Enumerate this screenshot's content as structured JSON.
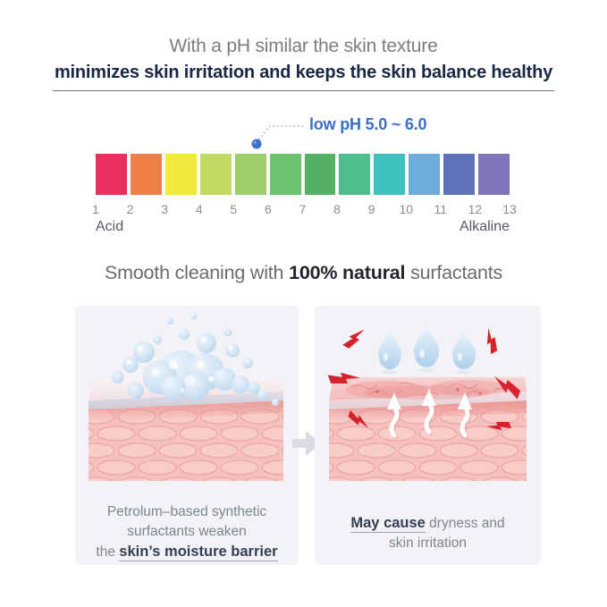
{
  "header": {
    "subtitle": "With a pH similar the skin texture",
    "title": "minimizes skin irritation and keeps the skin balance healthy",
    "title_color": "#1a2845",
    "subtitle_color": "#7c7c7c"
  },
  "ph_scale": {
    "callout": "low pH 5.0 ~ 6.0",
    "callout_color": "#3a6fc6",
    "indicator_dot_color": "#3d6fd0",
    "segment_colors": [
      "#e9305e",
      "#ef8048",
      "#efe93c",
      "#c1da63",
      "#9ecd69",
      "#6cc36f",
      "#56b065",
      "#4dbf8e",
      "#40c1c0",
      "#6bacd9",
      "#5d72ba",
      "#7e76b8"
    ],
    "tick_labels": [
      "1",
      "2",
      "3",
      "4",
      "5",
      "6",
      "7",
      "8",
      "9",
      "10",
      "11",
      "12",
      "13"
    ],
    "left_label": "Acid",
    "right_label": "Alkaline"
  },
  "section2": {
    "heading_prefix": "Smooth cleaning with ",
    "heading_bold": "100% natural",
    "heading_suffix": " surfactants"
  },
  "panels": {
    "background_color": "#f3f3f7",
    "left": {
      "caption_line1": "Petrolum–based synthetic",
      "caption_line2": "surfactants weaken",
      "caption_line3_prefix": "the ",
      "caption_line3_bold": "skin’s moisture barrier"
    },
    "right": {
      "caption_bold": "May cause",
      "caption_line1_rest": " dryness and",
      "caption_line2": "skin irritation"
    }
  }
}
